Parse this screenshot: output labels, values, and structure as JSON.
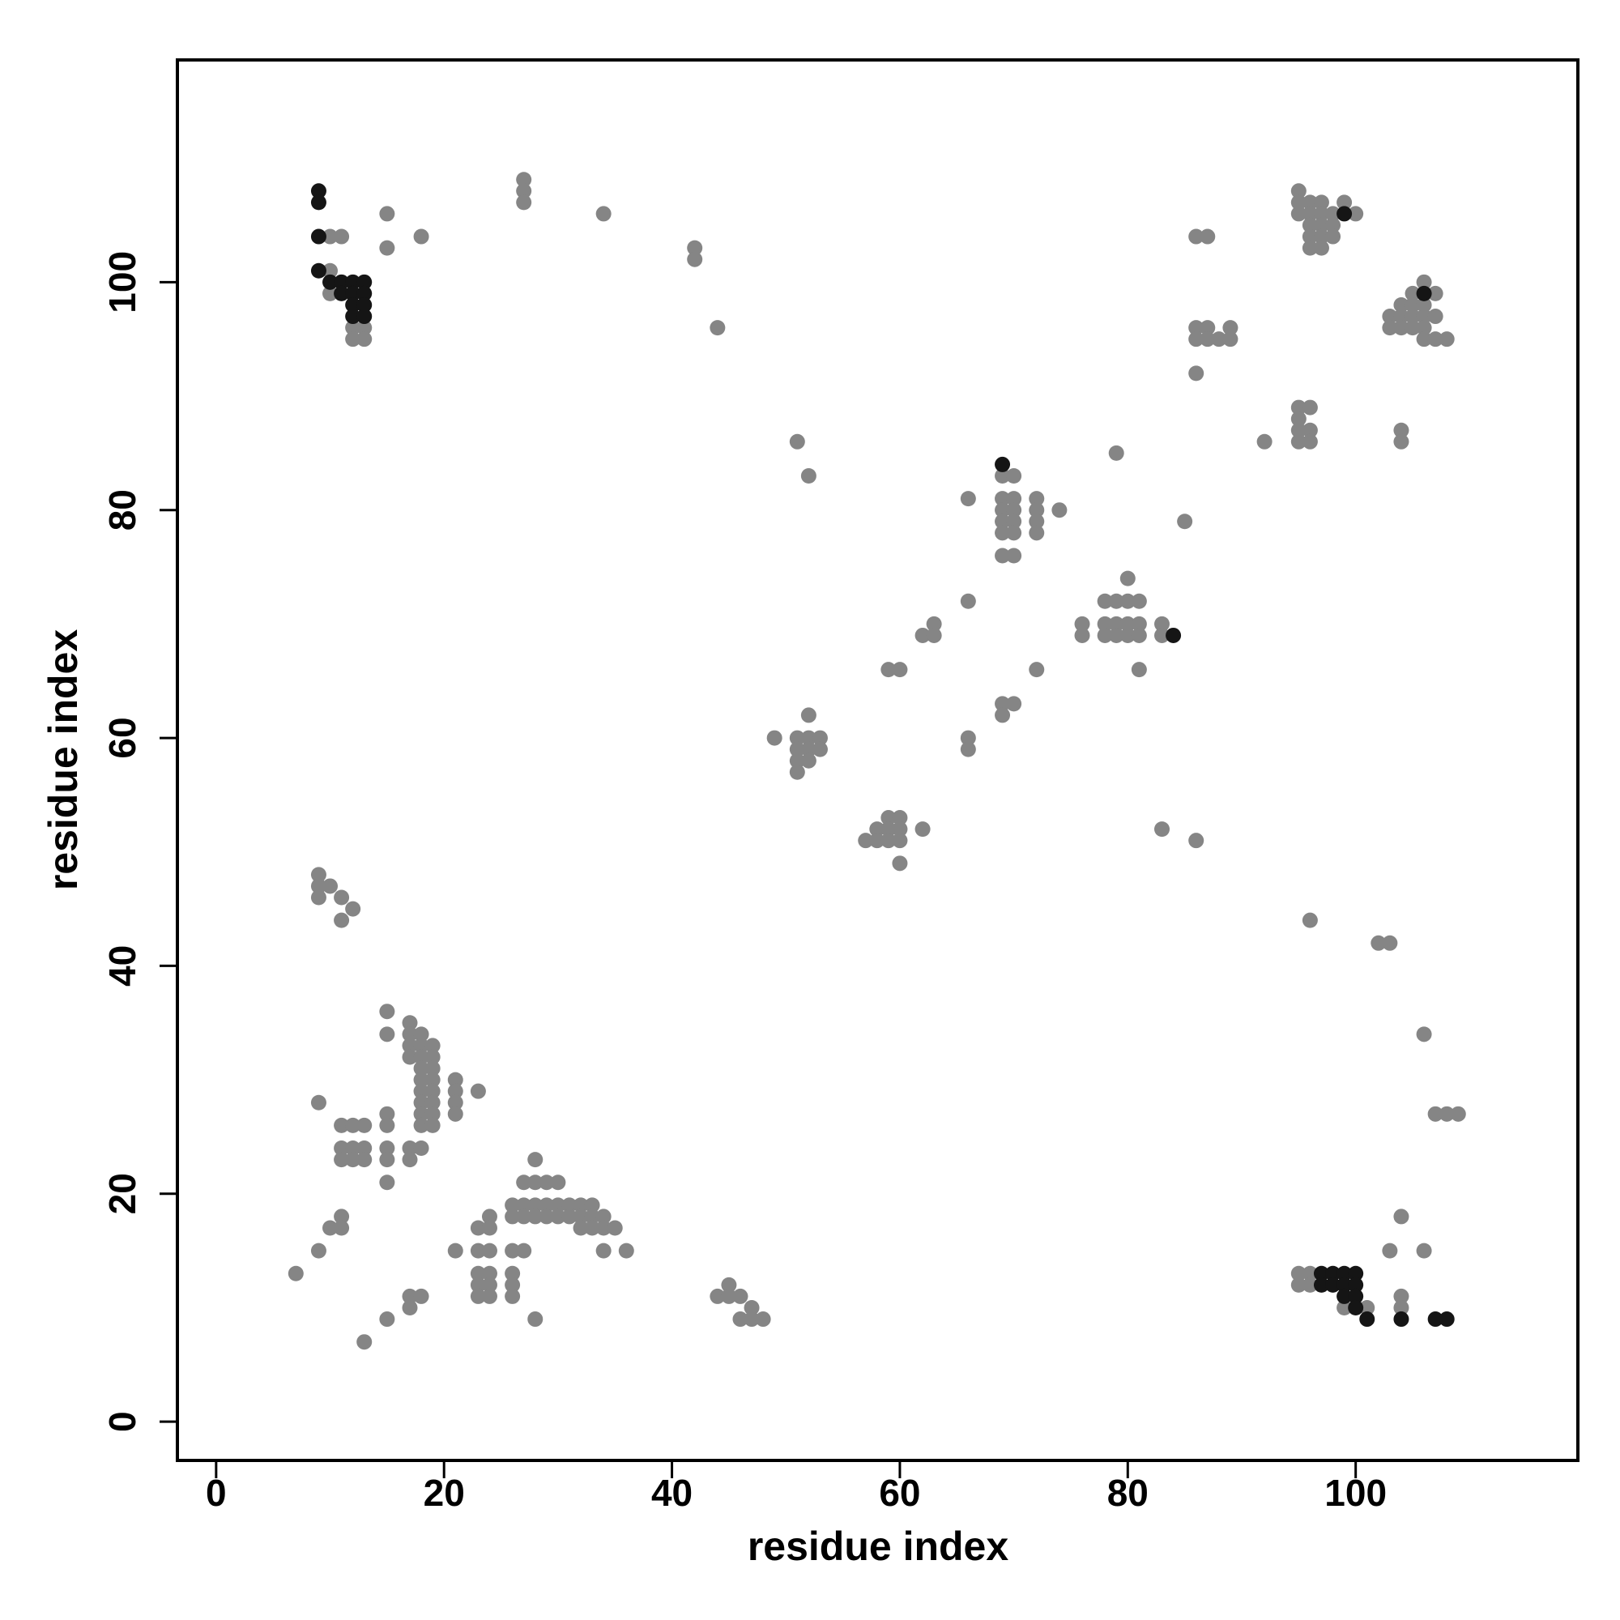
{
  "chart_data": {
    "type": "scatter",
    "xlabel": "residue index",
    "ylabel": "residue index",
    "xlim": [
      -3.4,
      119.5
    ],
    "ylim": [
      -3.4,
      119.5
    ],
    "xticks": [
      0,
      20,
      40,
      60,
      80,
      100
    ],
    "yticks": [
      0,
      20,
      40,
      60,
      80,
      100
    ],
    "grid": false,
    "series": [
      {
        "color": "#858585",
        "x": [
          10,
          11,
          10,
          10,
          12,
          12,
          13,
          13,
          15,
          15,
          18,
          27,
          27,
          27,
          34,
          42,
          42,
          44,
          95,
          95,
          95,
          96,
          96,
          96,
          96,
          96,
          97,
          97,
          97,
          97,
          97,
          98,
          98,
          98,
          99,
          100,
          86,
          87,
          86,
          86,
          87,
          87,
          88,
          89,
          89,
          86,
          103,
          103,
          104,
          104,
          104,
          105,
          105,
          105,
          105,
          106,
          106,
          106,
          106,
          106,
          107,
          107,
          107,
          108,
          95,
          95,
          95,
          95,
          96,
          96,
          96,
          92,
          104,
          104,
          51,
          52,
          69,
          69,
          69,
          69,
          69,
          69,
          70,
          70,
          70,
          70,
          70,
          70,
          72,
          72,
          72,
          72,
          74,
          66,
          79,
          85,
          66,
          80,
          78,
          79,
          80,
          81,
          76,
          76,
          78,
          78,
          79,
          79,
          80,
          80,
          81,
          81,
          83,
          83,
          81,
          62,
          63,
          63,
          59,
          60,
          72,
          52,
          49,
          51,
          51,
          51,
          51,
          52,
          52,
          52,
          53,
          53,
          66,
          66,
          69,
          69,
          70,
          57,
          58,
          58,
          59,
          59,
          59,
          60,
          60,
          60,
          60,
          62,
          83,
          86,
          9,
          9,
          9,
          10,
          11,
          11,
          12,
          96,
          102,
          103,
          106,
          107,
          108,
          109,
          104,
          103,
          106,
          15,
          15,
          17,
          17,
          17,
          17,
          18,
          18,
          18,
          18,
          18,
          18,
          18,
          18,
          18,
          19,
          19,
          19,
          19,
          19,
          19,
          19,
          19,
          21,
          21,
          21,
          21,
          23,
          9,
          11,
          12,
          13,
          11,
          11,
          12,
          12,
          13,
          13,
          15,
          15,
          15,
          15,
          15,
          17,
          17,
          18,
          28,
          27,
          28,
          29,
          30,
          26,
          26,
          27,
          27,
          28,
          28,
          29,
          29,
          30,
          30,
          31,
          31,
          32,
          32,
          32,
          33,
          33,
          33,
          34,
          34,
          35,
          23,
          24,
          24,
          9,
          10,
          11,
          11,
          7,
          21,
          23,
          24,
          23,
          24,
          23,
          24,
          23,
          24,
          26,
          27,
          26,
          26,
          26,
          34,
          36,
          28,
          17,
          18,
          17,
          15,
          13,
          44,
          45,
          45,
          46,
          47,
          46,
          47,
          48,
          95,
          95,
          96,
          96,
          99,
          101,
          104,
          104
        ],
        "y": [
          104,
          104,
          101,
          99,
          96,
          95,
          96,
          95,
          106,
          103,
          104,
          109,
          108,
          107,
          106,
          103,
          102,
          96,
          108,
          107,
          106,
          107,
          106,
          105,
          104,
          103,
          107,
          106,
          105,
          104,
          103,
          106,
          105,
          104,
          107,
          106,
          104,
          104,
          96,
          95,
          96,
          95,
          95,
          96,
          95,
          92,
          97,
          96,
          98,
          97,
          96,
          99,
          98,
          97,
          96,
          100,
          98,
          97,
          96,
          95,
          99,
          97,
          95,
          95,
          89,
          88,
          87,
          86,
          89,
          87,
          86,
          86,
          87,
          86,
          86,
          83,
          83,
          81,
          80,
          79,
          78,
          76,
          83,
          81,
          80,
          79,
          78,
          76,
          81,
          80,
          79,
          78,
          80,
          81,
          85,
          79,
          72,
          74,
          72,
          72,
          72,
          72,
          70,
          69,
          70,
          69,
          70,
          69,
          70,
          69,
          70,
          69,
          70,
          69,
          66,
          69,
          70,
          69,
          66,
          66,
          66,
          62,
          60,
          60,
          59,
          58,
          57,
          60,
          59,
          58,
          60,
          59,
          60,
          59,
          63,
          62,
          63,
          51,
          52,
          51,
          53,
          52,
          51,
          53,
          52,
          51,
          49,
          52,
          52,
          51,
          48,
          47,
          46,
          47,
          46,
          44,
          45,
          44,
          42,
          42,
          34,
          27,
          27,
          27,
          18,
          15,
          15,
          36,
          34,
          35,
          34,
          33,
          32,
          34,
          33,
          32,
          31,
          30,
          29,
          28,
          27,
          26,
          33,
          32,
          31,
          30,
          29,
          28,
          27,
          26,
          30,
          29,
          28,
          27,
          29,
          28,
          26,
          26,
          26,
          24,
          23,
          24,
          23,
          24,
          23,
          27,
          26,
          24,
          23,
          21,
          24,
          23,
          24,
          23,
          21,
          21,
          21,
          21,
          19,
          18,
          19,
          18,
          19,
          18,
          19,
          18,
          19,
          18,
          19,
          18,
          19,
          18,
          17,
          19,
          18,
          17,
          18,
          17,
          17,
          17,
          18,
          17,
          15,
          17,
          18,
          17,
          13,
          15,
          15,
          15,
          13,
          13,
          12,
          12,
          11,
          11,
          15,
          15,
          13,
          12,
          11,
          15,
          15,
          9,
          11,
          11,
          10,
          9,
          7,
          11,
          12,
          11,
          11,
          10,
          9,
          9,
          9,
          13,
          12,
          13,
          12,
          10,
          10,
          11,
          10
        ]
      },
      {
        "color": "#151515",
        "x": [
          9,
          9,
          9,
          9,
          10,
          11,
          11,
          12,
          12,
          12,
          12,
          13,
          13,
          13,
          13,
          99,
          106,
          69,
          84,
          97,
          97,
          98,
          98,
          99,
          99,
          100,
          100,
          99,
          100,
          100,
          101,
          104,
          107,
          108
        ],
        "y": [
          108,
          107,
          104,
          101,
          100,
          100,
          99,
          100,
          99,
          98,
          97,
          100,
          99,
          98,
          97,
          106,
          99,
          84,
          69,
          13,
          12,
          13,
          12,
          13,
          12,
          13,
          12,
          11,
          11,
          10,
          9,
          9,
          9,
          9
        ]
      }
    ]
  }
}
